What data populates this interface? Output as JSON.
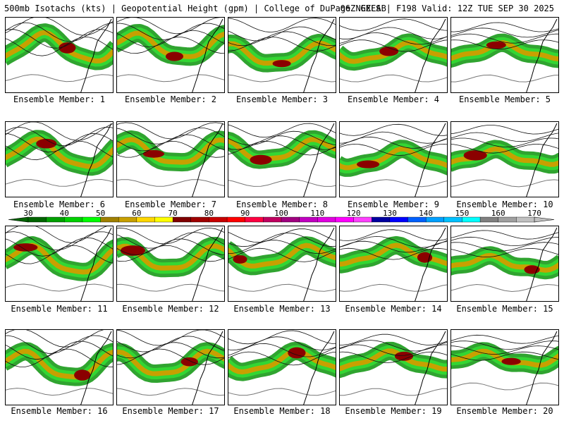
{
  "header": {
    "left": "500mb Isotachs (kts) | Geopotential Height (gpm) | College of DuPage NEXLAB",
    "right": "06Z GEFS | F198 Valid: 12Z TUE SEP 30 2025"
  },
  "member_label_prefix": "Ensemble Member:",
  "members": [
    {
      "number": "1",
      "label": "Ensemble Member: 1"
    },
    {
      "number": "2",
      "label": "Ensemble Member: 2"
    },
    {
      "number": "3",
      "label": "Ensemble Member: 3"
    },
    {
      "number": "4",
      "label": "Ensemble Member: 4"
    },
    {
      "number": "5",
      "label": "Ensemble Member: 5"
    },
    {
      "number": "6",
      "label": "Ensemble Member: 6"
    },
    {
      "number": "7",
      "label": "Ensemble Member: 7"
    },
    {
      "number": "8",
      "label": "Ensemble Member: 8"
    },
    {
      "number": "9",
      "label": "Ensemble Member: 9"
    },
    {
      "number": "10",
      "label": "Ensemble Member: 10"
    },
    {
      "number": "11",
      "label": "Ensemble Member: 11"
    },
    {
      "number": "12",
      "label": "Ensemble Member: 12"
    },
    {
      "number": "13",
      "label": "Ensemble Member: 13"
    },
    {
      "number": "14",
      "label": "Ensemble Member: 14"
    },
    {
      "number": "15",
      "label": "Ensemble Member: 15"
    },
    {
      "number": "16",
      "label": "Ensemble Member: 16"
    },
    {
      "number": "17",
      "label": "Ensemble Member: 17"
    },
    {
      "number": "18",
      "label": "Ensemble Member: 18"
    },
    {
      "number": "19",
      "label": "Ensemble Member: 19"
    },
    {
      "number": "20",
      "label": "Ensemble Member: 20"
    }
  ],
  "legend": {
    "unit": "kts",
    "labels": [
      "30",
      "40",
      "50",
      "60",
      "70",
      "80",
      "90",
      "100",
      "110",
      "120",
      "130",
      "140",
      "150",
      "160",
      "170"
    ],
    "colors": [
      "#006400",
      "#00a000",
      "#00d000",
      "#00ff00",
      "#a08000",
      "#c8a000",
      "#ffd700",
      "#ffff00",
      "#800000",
      "#a00000",
      "#c80000",
      "#ff0000",
      "#ff0040",
      "#c00060",
      "#a00080",
      "#c000c0",
      "#e000e0",
      "#ff00ff",
      "#ff40ff",
      "#0000a0",
      "#0000ff",
      "#0060ff",
      "#00a0ff",
      "#00c0ff",
      "#00ffff",
      "#808080",
      "#a0a0a0",
      "#c0c0c0"
    ]
  }
}
